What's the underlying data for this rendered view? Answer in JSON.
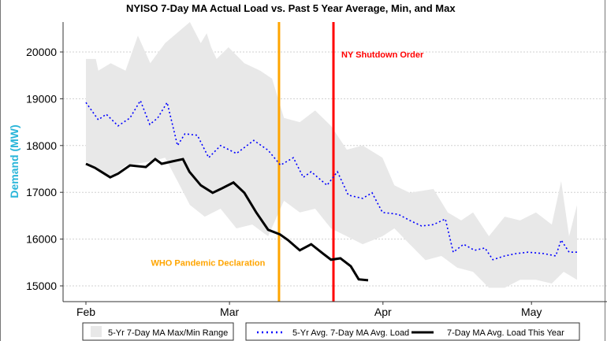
{
  "chart_data": {
    "type": "line",
    "title": "NYISO 7-Day MA Actual Load vs. Past 5 Year Average, Min, and Max",
    "xlabel": "",
    "ylabel": "Demand (MW)",
    "x_unit": "days since Feb 1",
    "xticks": [
      {
        "day": 0,
        "label": "Feb"
      },
      {
        "day": 29,
        "label": "Mar"
      },
      {
        "day": 60,
        "label": "Apr"
      },
      {
        "day": 90,
        "label": "May"
      }
    ],
    "xlim": [
      -3,
      105
    ],
    "ylim": [
      14700,
      20900
    ],
    "yticks": [
      15000,
      16000,
      17000,
      18000,
      19000,
      20000
    ],
    "grid": "horizontal dotted",
    "annotations": [
      {
        "label": "WHO Pandemic Declaration",
        "day": 39,
        "color": "#FFA500",
        "label_y": 15500
      },
      {
        "label": "NY Shutdown Order",
        "day": 50,
        "color": "#FF0000",
        "label_y": 19950
      }
    ],
    "band": {
      "name": "5-Yr 7-Day MA Max/Min Range",
      "color": "#E8E8E8",
      "max": [
        [
          0,
          19850
        ],
        [
          2,
          19850
        ],
        [
          2.5,
          19600
        ],
        [
          5,
          19760
        ],
        [
          8,
          19600
        ],
        [
          10.5,
          20350
        ],
        [
          13,
          19760
        ],
        [
          16,
          20190
        ],
        [
          21,
          20640
        ],
        [
          23.2,
          20190
        ],
        [
          24.4,
          20400
        ],
        [
          25.3,
          20100
        ],
        [
          26.4,
          19850
        ],
        [
          28.8,
          20100
        ],
        [
          32,
          19760
        ],
        [
          35.2,
          19600
        ],
        [
          37.6,
          19430
        ],
        [
          40,
          18590
        ],
        [
          43.2,
          18500
        ],
        [
          46.3,
          18750
        ],
        [
          49.5,
          18420
        ],
        [
          52.7,
          17910
        ],
        [
          55.9,
          18000
        ],
        [
          59.9,
          17740
        ],
        [
          62.3,
          17150
        ],
        [
          65.4,
          16990
        ],
        [
          70.2,
          17070
        ],
        [
          73.1,
          16570
        ],
        [
          75.8,
          16400
        ],
        [
          78.2,
          16570
        ],
        [
          81.4,
          16060
        ],
        [
          84.6,
          16480
        ],
        [
          87.7,
          16400
        ],
        [
          90.9,
          16570
        ],
        [
          94.1,
          16310
        ],
        [
          96,
          17240
        ],
        [
          97.6,
          16060
        ],
        [
          99.2,
          16730
        ]
      ],
      "min": [
        [
          0,
          17660
        ],
        [
          5,
          17320
        ],
        [
          8,
          17570
        ],
        [
          13,
          17660
        ],
        [
          16,
          17740
        ],
        [
          18.5,
          17240
        ],
        [
          21,
          16730
        ],
        [
          24,
          16480
        ],
        [
          27.2,
          16650
        ],
        [
          30.4,
          16230
        ],
        [
          33.6,
          16310
        ],
        [
          36.8,
          16060
        ],
        [
          40,
          16820
        ],
        [
          43.2,
          16570
        ],
        [
          46.3,
          16650
        ],
        [
          49.5,
          16230
        ],
        [
          52.7,
          16060
        ],
        [
          55.9,
          15890
        ],
        [
          59.9,
          16060
        ],
        [
          62.3,
          16230
        ],
        [
          65.4,
          15890
        ],
        [
          68.6,
          15550
        ],
        [
          71.8,
          15640
        ],
        [
          75,
          15390
        ],
        [
          78.2,
          15300
        ],
        [
          81.4,
          14960
        ],
        [
          84.6,
          14960
        ],
        [
          87.7,
          15130
        ],
        [
          90.9,
          15130
        ],
        [
          94.1,
          15050
        ],
        [
          96.5,
          15300
        ],
        [
          99.2,
          15130
        ]
      ]
    },
    "series": [
      {
        "name": "5-Yr Avg. 7-Day MA Avg. Load",
        "color": "#0000FF",
        "style": "dotted",
        "points": [
          [
            0,
            18920
          ],
          [
            2.5,
            18550
          ],
          [
            4.1,
            18670
          ],
          [
            6.5,
            18420
          ],
          [
            8.9,
            18590
          ],
          [
            11,
            18960
          ],
          [
            12.9,
            18450
          ],
          [
            14.5,
            18590
          ],
          [
            16.4,
            18920
          ],
          [
            18.5,
            18000
          ],
          [
            20,
            18250
          ],
          [
            22.5,
            18220
          ],
          [
            24.8,
            17740
          ],
          [
            27.2,
            18000
          ],
          [
            30.4,
            17830
          ],
          [
            33.9,
            18110
          ],
          [
            36.8,
            17900
          ],
          [
            39.3,
            17580
          ],
          [
            41.9,
            17740
          ],
          [
            43.9,
            17320
          ],
          [
            45.5,
            17440
          ],
          [
            48.7,
            17150
          ],
          [
            50.8,
            17440
          ],
          [
            53,
            16940
          ],
          [
            55.9,
            16870
          ],
          [
            57.8,
            16990
          ],
          [
            59.9,
            16570
          ],
          [
            63.1,
            16530
          ],
          [
            65.4,
            16400
          ],
          [
            67.8,
            16280
          ],
          [
            70.2,
            16310
          ],
          [
            72.6,
            16430
          ],
          [
            74.2,
            15720
          ],
          [
            76.3,
            15890
          ],
          [
            78.5,
            15760
          ],
          [
            80.6,
            15810
          ],
          [
            82.2,
            15560
          ],
          [
            84.6,
            15640
          ],
          [
            86.9,
            15690
          ],
          [
            89.3,
            15720
          ],
          [
            92.5,
            15690
          ],
          [
            94.9,
            15640
          ],
          [
            96,
            15980
          ],
          [
            97.6,
            15720
          ],
          [
            99.2,
            15720
          ]
        ]
      },
      {
        "name": "7-Day MA Avg. Load This Year",
        "color": "#000000",
        "style": "solid",
        "points": [
          [
            0,
            17610
          ],
          [
            1.8,
            17525
          ],
          [
            4.9,
            17320
          ],
          [
            6.5,
            17400
          ],
          [
            8.9,
            17575
          ],
          [
            12.1,
            17540
          ],
          [
            14,
            17710
          ],
          [
            15.3,
            17610
          ],
          [
            17.4,
            17660
          ],
          [
            19.6,
            17710
          ],
          [
            20.9,
            17440
          ],
          [
            23.2,
            17150
          ],
          [
            25.6,
            16990
          ],
          [
            27.2,
            17070
          ],
          [
            29.8,
            17210
          ],
          [
            32,
            16990
          ],
          [
            34.4,
            16570
          ],
          [
            36.8,
            16200
          ],
          [
            39.2,
            16100
          ],
          [
            40.8,
            15980
          ],
          [
            43.2,
            15760
          ],
          [
            45.5,
            15890
          ],
          [
            47.9,
            15690
          ],
          [
            49.5,
            15560
          ],
          [
            51.4,
            15590
          ],
          [
            53.5,
            15420
          ],
          [
            55.1,
            15140
          ],
          [
            57,
            15120
          ]
        ]
      }
    ],
    "legend": {
      "placement": "bottom",
      "entries": [
        "5-Yr 7-Day MA Max/Min Range",
        "5-Yr Avg. 7-Day MA Avg. Load",
        "7-Day MA Avg. Load This Year"
      ]
    }
  }
}
